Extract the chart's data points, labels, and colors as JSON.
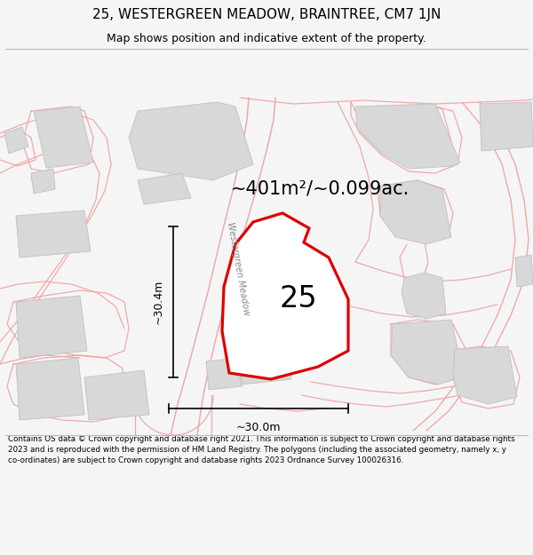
{
  "title": "25, WESTERGREEN MEADOW, BRAINTREE, CM7 1JN",
  "subtitle": "Map shows position and indicative extent of the property.",
  "area_label": "~401m²/~0.099ac.",
  "number_label": "25",
  "street_label": "Westergreen Meadow",
  "dim_horiz": "~30.0m",
  "dim_vert": "~30.4m",
  "footer": "Contains OS data © Crown copyright and database right 2021. This information is subject to Crown copyright and database rights 2023 and is reproduced with the permission of HM Land Registry. The polygons (including the associated geometry, namely x, y co-ordinates) are subject to Crown copyright and database rights 2023 Ordnance Survey 100026316.",
  "bg_color": "#f5f5f5",
  "map_bg": "#ffffff",
  "plot_color": "#dd0000",
  "building_fill": "#d8d8d8",
  "building_edge": "#c0c0c0",
  "line_color": "#f0a0a0",
  "title_fontsize": 11,
  "subtitle_fontsize": 9,
  "footer_fontsize": 6.3,
  "area_fontsize": 15,
  "number_fontsize": 24,
  "dim_fontsize": 9,
  "street_fontsize": 7
}
